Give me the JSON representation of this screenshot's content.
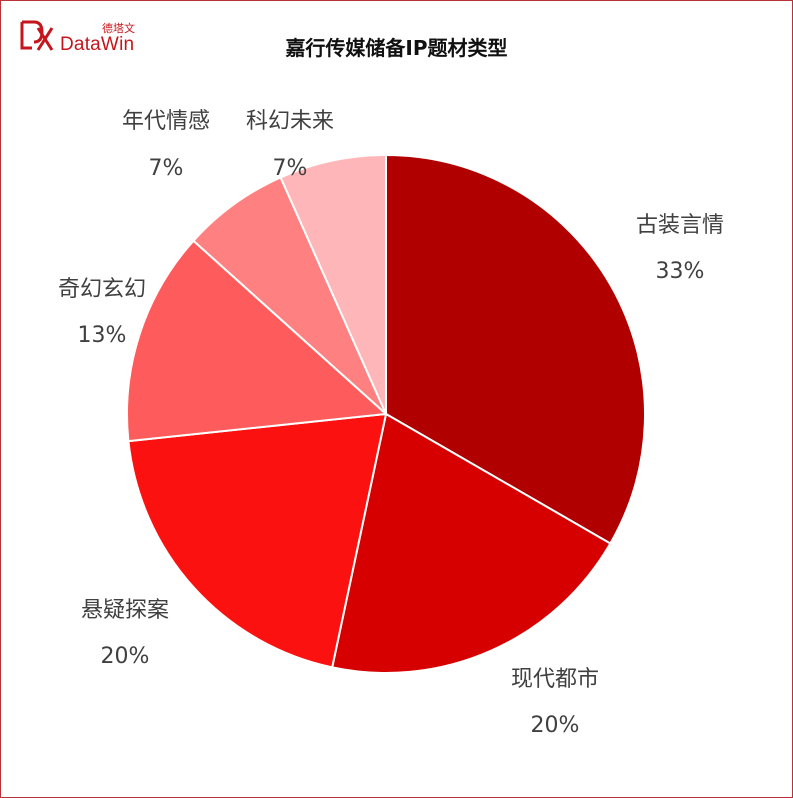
{
  "logo": {
    "cn": "德塔文",
    "en": "DataWin"
  },
  "chart_data": {
    "type": "pie",
    "title": "嘉行传媒储备IP题材类型",
    "categories": [
      "古装言情",
      "现代都市",
      "悬疑探案",
      "奇幻玄幻",
      "年代情感",
      "科幻未来"
    ],
    "values": [
      33.33,
      20,
      20,
      13.33,
      6.67,
      6.67
    ],
    "labels": [
      "33%",
      "20%",
      "20%",
      "13%",
      "7%",
      "7%"
    ],
    "colors": [
      "#b00000",
      "#d60000",
      "#fc1111",
      "#fe5c5c",
      "#ff8080",
      "#ffb6b9"
    ],
    "legend": "none"
  }
}
